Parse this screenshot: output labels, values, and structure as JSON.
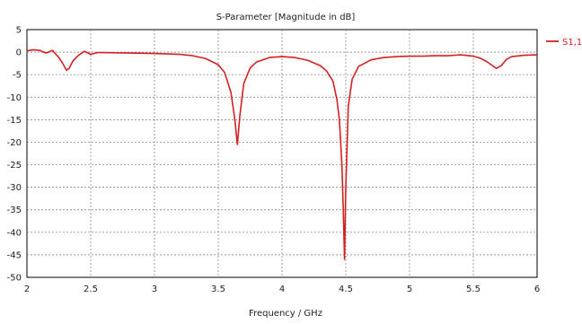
{
  "chart_data": {
    "type": "line",
    "title": "S-Parameter [Magnitude in dB]",
    "xlabel": "Frequency / GHz",
    "ylabel": "",
    "xlim": [
      2,
      6
    ],
    "ylim": [
      -50,
      5
    ],
    "xticks": [
      "2",
      "2.5",
      "3",
      "3.5",
      "4",
      "4.5",
      "5",
      "5.5",
      "6"
    ],
    "yticks": [
      "5",
      "0",
      "-5",
      "-10",
      "-15",
      "-20",
      "-25",
      "-30",
      "-35",
      "-40",
      "-45",
      "-50"
    ],
    "grid": true,
    "legend_position": "right",
    "series": [
      {
        "name": "S1,1",
        "color": "#d62020",
        "x": [
          2.0,
          2.05,
          2.1,
          2.15,
          2.2,
          2.25,
          2.28,
          2.31,
          2.33,
          2.36,
          2.4,
          2.45,
          2.5,
          2.55,
          2.6,
          2.8,
          3.0,
          3.2,
          3.3,
          3.4,
          3.5,
          3.55,
          3.6,
          3.63,
          3.65,
          3.67,
          3.7,
          3.75,
          3.8,
          3.9,
          4.0,
          4.1,
          4.2,
          4.3,
          4.35,
          4.4,
          4.43,
          4.45,
          4.47,
          4.48,
          4.49,
          4.5,
          4.52,
          4.55,
          4.6,
          4.7,
          4.8,
          4.9,
          5.0,
          5.1,
          5.2,
          5.3,
          5.4,
          5.5,
          5.55,
          5.6,
          5.65,
          5.68,
          5.72,
          5.76,
          5.8,
          5.9,
          6.0
        ],
        "y": [
          0.3,
          0.5,
          0.4,
          -0.2,
          0.4,
          -1.2,
          -2.5,
          -4.0,
          -3.6,
          -2.0,
          -0.8,
          0.2,
          -0.5,
          -0.1,
          -0.1,
          -0.2,
          -0.3,
          -0.5,
          -0.8,
          -1.4,
          -2.8,
          -4.5,
          -9.0,
          -15.0,
          -20.5,
          -14.0,
          -7.0,
          -3.5,
          -2.2,
          -1.2,
          -1.0,
          -1.2,
          -1.8,
          -3.0,
          -4.2,
          -6.5,
          -10.5,
          -15.0,
          -25.0,
          -35.0,
          -46.0,
          -30.0,
          -12.0,
          -6.0,
          -3.2,
          -1.7,
          -1.2,
          -1.0,
          -0.9,
          -0.9,
          -0.8,
          -0.8,
          -0.6,
          -0.9,
          -1.3,
          -2.0,
          -3.0,
          -3.6,
          -3.0,
          -1.6,
          -1.0,
          -0.7,
          -0.6
        ]
      }
    ]
  }
}
